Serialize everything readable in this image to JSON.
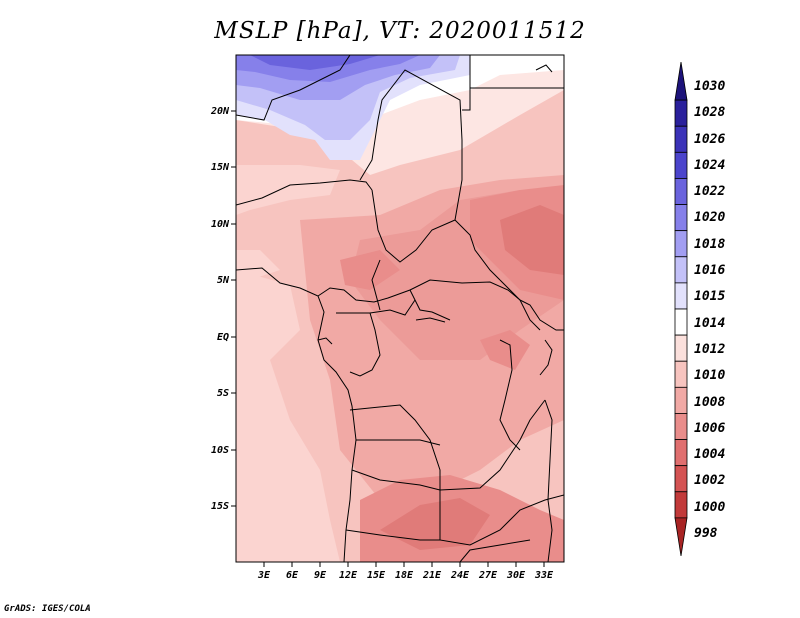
{
  "title": "MSLP [hPa], VT: 2020011512",
  "credit": "GrADS: IGES/COLA",
  "lat_ticks": [
    "20N",
    "15N",
    "10N",
    "5N",
    "EQ",
    "5S",
    "10S",
    "15S"
  ],
  "lon_ticks": [
    "3E",
    "6E",
    "9E",
    "12E",
    "15E",
    "18E",
    "21E",
    "24E",
    "27E",
    "30E",
    "33E"
  ],
  "colorbar": {
    "levels": [
      "1030",
      "1028",
      "1026",
      "1024",
      "1022",
      "1020",
      "1018",
      "1016",
      "1015",
      "1014",
      "1012",
      "1010",
      "1008",
      "1006",
      "1004",
      "1002",
      "1000",
      "998"
    ],
    "colors": [
      "#1d137a",
      "#2a209c",
      "#3b32b8",
      "#4b44cc",
      "#6a63dd",
      "#8680ea",
      "#a29ef2",
      "#c3c1f8",
      "#e2e1fc",
      "#ffffff",
      "#fbe0dc",
      "#f7c4bf",
      "#f1a9a5",
      "#e98d8b",
      "#e06f6f",
      "#d45353",
      "#c23a3a",
      "#a82424"
    ]
  }
}
